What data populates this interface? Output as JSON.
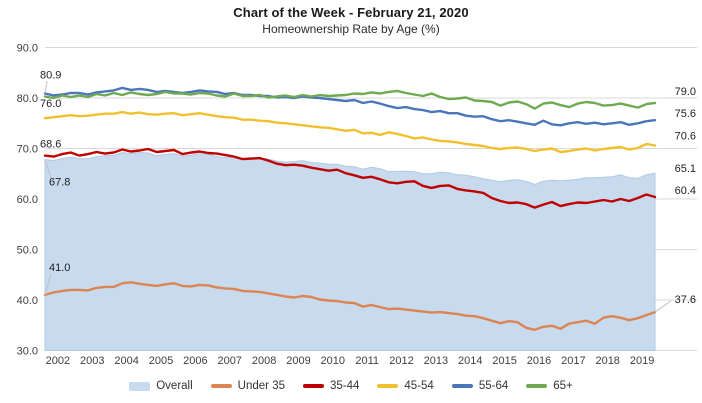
{
  "chart_data": {
    "type": "area",
    "title": "Chart of the Week - February 21, 2020",
    "subtitle": "Homeownership Rate by Age (%)",
    "xlabel": "",
    "ylabel": "",
    "ylim": [
      30,
      90
    ],
    "grid": true,
    "legend_position": "bottom",
    "gridline_color": "#d9d9d9",
    "y_ticks": [
      {
        "value": 90,
        "label": "90.0"
      },
      {
        "value": 80,
        "label": "80.0"
      },
      {
        "value": 70,
        "label": "70.0"
      },
      {
        "value": 60,
        "label": "60.0"
      },
      {
        "value": 50,
        "label": "50.0"
      },
      {
        "value": 40,
        "label": "40.0"
      },
      {
        "value": 30,
        "label": "30.0"
      }
    ],
    "x_tick_labels": [
      "2002",
      "2003",
      "2004",
      "2005",
      "2006",
      "2007",
      "2008",
      "2009",
      "2010",
      "2011",
      "2012",
      "2013",
      "2014",
      "2015",
      "2016",
      "2017",
      "2018",
      "2019"
    ],
    "points_per_year": 4,
    "series": [
      {
        "name": "Overall",
        "style": "area",
        "color": "#C7DAEE",
        "stroke": "#AFC9E4",
        "start_label": "67.8",
        "end_label": "65.1",
        "values": [
          67.8,
          67.6,
          68.0,
          68.3,
          68.0,
          68.0,
          68.4,
          68.6,
          68.6,
          69.2,
          69.0,
          69.2,
          69.1,
          68.6,
          68.8,
          69.0,
          68.5,
          68.7,
          69.0,
          68.9,
          68.4,
          68.2,
          68.2,
          67.8,
          67.8,
          68.1,
          67.9,
          67.5,
          67.3,
          67.4,
          67.6,
          67.2,
          67.1,
          66.9,
          66.9,
          66.5,
          66.4,
          65.9,
          66.3,
          66.0,
          65.4,
          65.5,
          65.5,
          65.4,
          65.0,
          65.0,
          65.3,
          65.2,
          64.8,
          64.7,
          64.4,
          64.0,
          63.7,
          63.4,
          63.7,
          63.8,
          63.5,
          62.9,
          63.5,
          63.7,
          63.6,
          63.7,
          63.9,
          64.2,
          64.2,
          64.3,
          64.4,
          64.8,
          64.2,
          64.1,
          64.8,
          65.1
        ]
      },
      {
        "name": "Under 35",
        "style": "line",
        "color": "#DD8452",
        "start_label": "41.0",
        "end_label": "37.6",
        "values": [
          41.0,
          41.5,
          41.8,
          42.0,
          42.0,
          41.9,
          42.4,
          42.6,
          42.6,
          43.3,
          43.5,
          43.2,
          43.0,
          42.8,
          43.1,
          43.3,
          42.8,
          42.7,
          43.0,
          42.9,
          42.5,
          42.3,
          42.2,
          41.8,
          41.7,
          41.6,
          41.3,
          41.0,
          40.7,
          40.5,
          40.8,
          40.6,
          40.1,
          39.9,
          39.8,
          39.5,
          39.4,
          38.7,
          39.0,
          38.6,
          38.2,
          38.3,
          38.1,
          37.9,
          37.7,
          37.5,
          37.6,
          37.4,
          37.2,
          36.9,
          36.8,
          36.4,
          35.9,
          35.4,
          35.8,
          35.6,
          34.5,
          34.1,
          34.7,
          34.9,
          34.3,
          35.3,
          35.6,
          35.9,
          35.3,
          36.5,
          36.8,
          36.5,
          36.0,
          36.4,
          37.0,
          37.6
        ]
      },
      {
        "name": "35-44",
        "style": "line",
        "color": "#C00000",
        "start_label": "68.6",
        "end_label": "60.4",
        "values": [
          68.6,
          68.4,
          68.9,
          69.2,
          68.6,
          68.9,
          69.3,
          69.0,
          69.2,
          69.8,
          69.4,
          69.6,
          69.9,
          69.3,
          69.5,
          69.7,
          68.9,
          69.2,
          69.4,
          69.1,
          69.0,
          68.7,
          68.4,
          67.9,
          68.0,
          68.1,
          67.6,
          67.0,
          66.7,
          66.8,
          66.6,
          66.2,
          65.9,
          65.6,
          65.8,
          65.1,
          64.7,
          64.2,
          64.4,
          63.9,
          63.3,
          63.1,
          63.4,
          63.5,
          62.6,
          62.2,
          62.6,
          62.7,
          62.0,
          61.7,
          61.5,
          61.2,
          60.2,
          59.6,
          59.2,
          59.3,
          59.0,
          58.3,
          58.9,
          59.4,
          58.6,
          59.0,
          59.3,
          59.2,
          59.5,
          59.8,
          59.5,
          60.0,
          59.6,
          60.2,
          60.9,
          60.4
        ]
      },
      {
        "name": "45-54",
        "style": "line",
        "color": "#F0C02E",
        "start_label": "76.0",
        "end_label": "70.6",
        "values": [
          76.0,
          76.2,
          76.4,
          76.6,
          76.4,
          76.5,
          76.7,
          76.9,
          76.9,
          77.2,
          76.9,
          77.1,
          76.8,
          76.7,
          76.9,
          77.0,
          76.6,
          76.8,
          77.0,
          76.7,
          76.4,
          76.2,
          76.1,
          75.7,
          75.7,
          75.5,
          75.4,
          75.1,
          75.0,
          74.8,
          74.6,
          74.4,
          74.2,
          74.1,
          73.8,
          73.5,
          73.7,
          73.0,
          73.1,
          72.7,
          73.2,
          72.9,
          72.5,
          72.0,
          72.2,
          71.8,
          71.5,
          71.4,
          71.2,
          70.9,
          70.7,
          70.5,
          70.1,
          69.9,
          70.1,
          70.2,
          69.9,
          69.5,
          69.8,
          70.0,
          69.3,
          69.5,
          69.8,
          70.0,
          69.6,
          69.9,
          70.1,
          70.3,
          69.8,
          70.1,
          70.9,
          70.6
        ]
      },
      {
        "name": "55-64",
        "style": "line",
        "color": "#4B76BC",
        "start_label": "80.9",
        "end_label": "75.6",
        "values": [
          80.9,
          80.5,
          80.7,
          81.0,
          81.0,
          80.7,
          81.1,
          81.3,
          81.5,
          82.0,
          81.6,
          81.8,
          81.6,
          81.2,
          81.4,
          81.2,
          81.0,
          81.2,
          81.5,
          81.3,
          81.2,
          80.8,
          81.0,
          80.6,
          80.6,
          80.4,
          80.4,
          80.1,
          80.2,
          80.0,
          80.3,
          80.1,
          80.0,
          79.8,
          79.6,
          79.4,
          79.6,
          79.0,
          79.3,
          78.9,
          78.4,
          78.0,
          78.2,
          77.8,
          77.6,
          77.2,
          77.4,
          77.0,
          77.0,
          76.5,
          76.3,
          76.4,
          75.8,
          75.4,
          75.6,
          75.3,
          75.0,
          74.7,
          75.5,
          74.8,
          74.6,
          75.0,
          75.2,
          74.9,
          75.1,
          74.8,
          75.0,
          75.2,
          74.7,
          75.0,
          75.4,
          75.6
        ]
      },
      {
        "name": "65+",
        "style": "line",
        "color": "#6FAA51",
        "end_label": "79.0",
        "values": [
          80.3,
          80.0,
          80.5,
          80.2,
          80.5,
          80.2,
          80.8,
          80.5,
          81.0,
          80.6,
          81.1,
          80.8,
          80.6,
          80.8,
          81.2,
          80.9,
          80.9,
          80.7,
          81.0,
          80.9,
          80.5,
          80.3,
          80.9,
          80.4,
          80.4,
          80.6,
          80.1,
          80.3,
          80.5,
          80.2,
          80.6,
          80.3,
          80.6,
          80.4,
          80.5,
          80.6,
          80.9,
          80.8,
          81.1,
          80.9,
          81.2,
          81.4,
          81.0,
          80.7,
          80.4,
          80.9,
          80.2,
          79.8,
          79.9,
          80.1,
          79.5,
          79.4,
          79.2,
          78.5,
          79.1,
          79.3,
          78.8,
          77.9,
          78.9,
          79.1,
          78.6,
          78.2,
          78.9,
          79.2,
          79.0,
          78.5,
          78.6,
          78.9,
          78.5,
          78.1,
          78.8,
          79.0
        ]
      }
    ],
    "legend": [
      "Overall",
      "Under 35",
      "35-44",
      "45-54",
      "55-64",
      "65+"
    ]
  }
}
